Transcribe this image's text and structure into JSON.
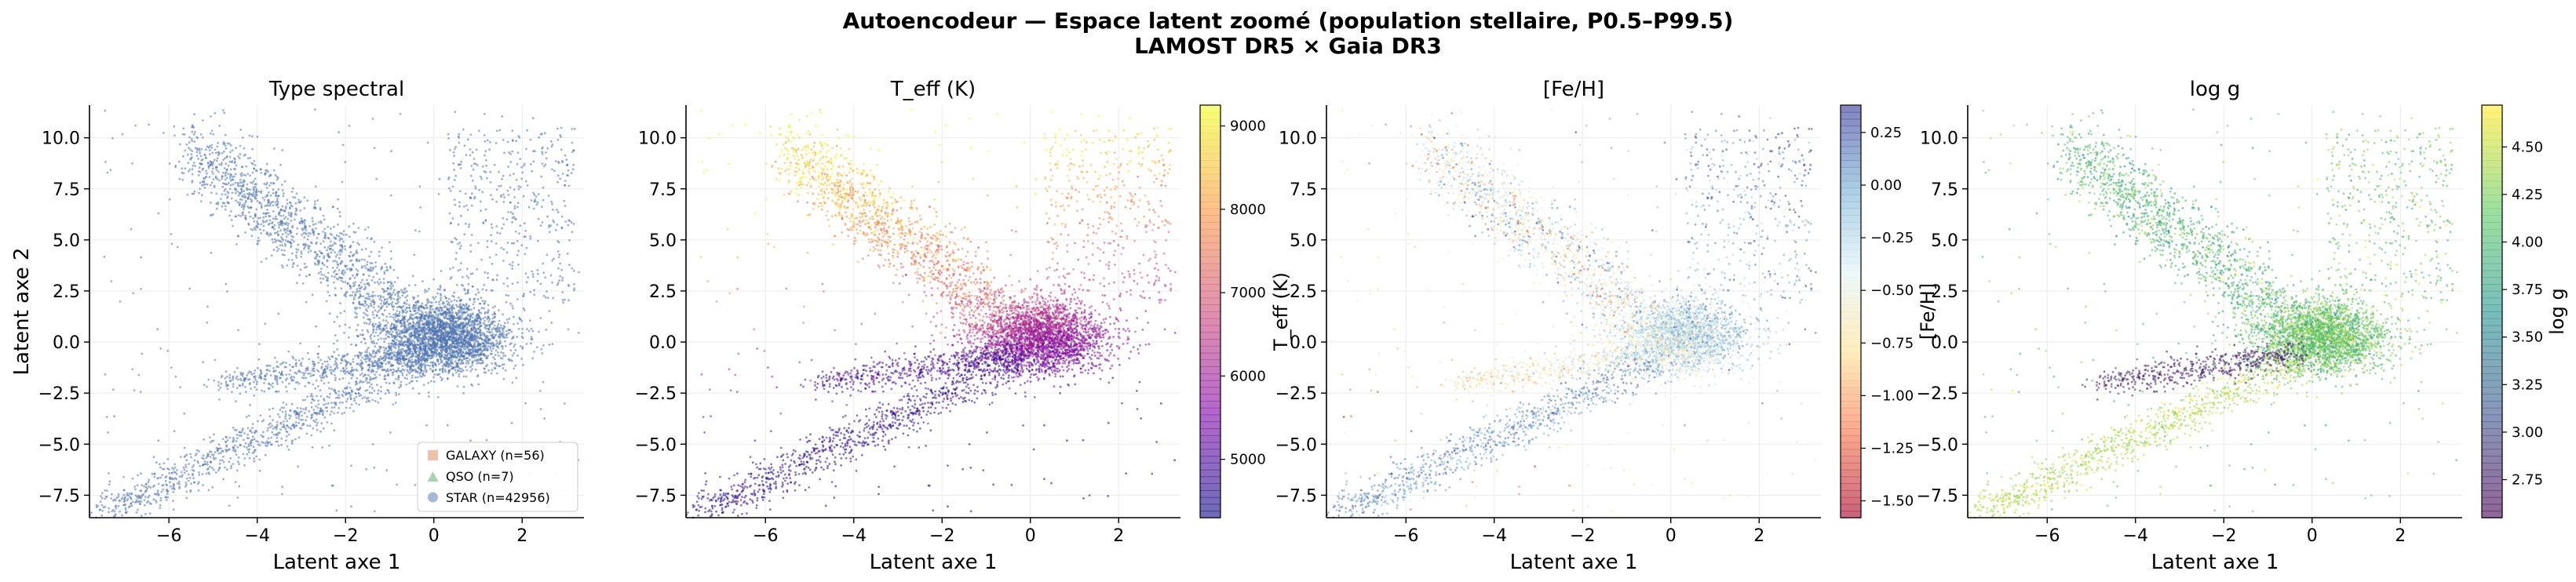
{
  "figure": {
    "title_line1": "Autoencodeur — Espace latent zoomé (population stellaire, P0.5–P99.5)",
    "title_line2": "LAMOST DR5 × Gaia DR3"
  },
  "colors": {
    "star": "#4c72b0",
    "qso": "#55a868",
    "galaxy": "#dd8452",
    "grid": "#ebebeb"
  },
  "chart_data": [
    {
      "type": "scatter",
      "title": "Type spectral",
      "xlabel": "Latent axe 1",
      "ylabel": "Latent axe 2",
      "xlim": [
        -7.8,
        3.4
      ],
      "ylim": [
        -8.6,
        11.6
      ],
      "xticks": [
        -6,
        -4,
        -2,
        0,
        2
      ],
      "yticks": [
        -7.5,
        -5.0,
        -2.5,
        0.0,
        2.5,
        5.0,
        7.5,
        10.0
      ],
      "grid": true,
      "legend_position": "bottom-right",
      "series": [
        {
          "name": "GALAXY (n=56)",
          "count": 56,
          "color": "#dd8452",
          "marker": "square"
        },
        {
          "name": "QSO (n=7)",
          "count": 7,
          "color": "#55a868",
          "marker": "triangle"
        },
        {
          "name": "STAR (n=42956)",
          "count": 42956,
          "color": "#4c72b0",
          "marker": "circle"
        }
      ]
    },
    {
      "type": "scatter",
      "title": "T_eff (K)",
      "xlabel": "Latent axe 1",
      "xlim": [
        -7.8,
        3.4
      ],
      "ylim": [
        -8.6,
        11.6
      ],
      "xticks": [
        -6,
        -4,
        -2,
        0,
        2
      ],
      "yticks": [
        -7.5,
        -5.0,
        -2.5,
        0.0,
        2.5,
        5.0,
        7.5,
        10.0
      ],
      "grid": true,
      "colorbar": {
        "label": "T_eff (K)",
        "colormap": "plasma",
        "range": [
          4300,
          9250
        ],
        "ticks": [
          5000,
          6000,
          7000,
          8000,
          9000
        ]
      }
    },
    {
      "type": "scatter",
      "title": "[Fe/H]",
      "xlabel": "Latent axe 1",
      "xlim": [
        -7.8,
        3.4
      ],
      "ylim": [
        -8.6,
        11.6
      ],
      "xticks": [
        -6,
        -4,
        -2,
        0,
        2
      ],
      "yticks": [
        -7.5,
        -5.0,
        -2.5,
        0.0,
        2.5,
        5.0,
        7.5,
        10.0
      ],
      "grid": true,
      "colorbar": {
        "label": "[Fe/H]",
        "colormap": "RdYlBu",
        "range": [
          -1.58,
          0.38
        ],
        "ticks": [
          -1.5,
          -1.25,
          -1.0,
          -0.75,
          -0.5,
          -0.25,
          0.0,
          0.25
        ]
      }
    },
    {
      "type": "scatter",
      "title": "log g",
      "xlabel": "Latent axe 1",
      "xlim": [
        -7.8,
        3.4
      ],
      "ylim": [
        -8.6,
        11.6
      ],
      "xticks": [
        -6,
        -4,
        -2,
        0,
        2
      ],
      "yticks": [
        -7.5,
        -5.0,
        -2.5,
        0.0,
        2.5,
        5.0,
        7.5,
        10.0
      ],
      "grid": true,
      "colorbar": {
        "label": "log g",
        "colormap": "viridis",
        "range": [
          2.55,
          4.72
        ],
        "ticks": [
          2.75,
          3.0,
          3.25,
          3.5,
          3.75,
          4.0,
          4.25,
          4.5
        ]
      }
    }
  ]
}
